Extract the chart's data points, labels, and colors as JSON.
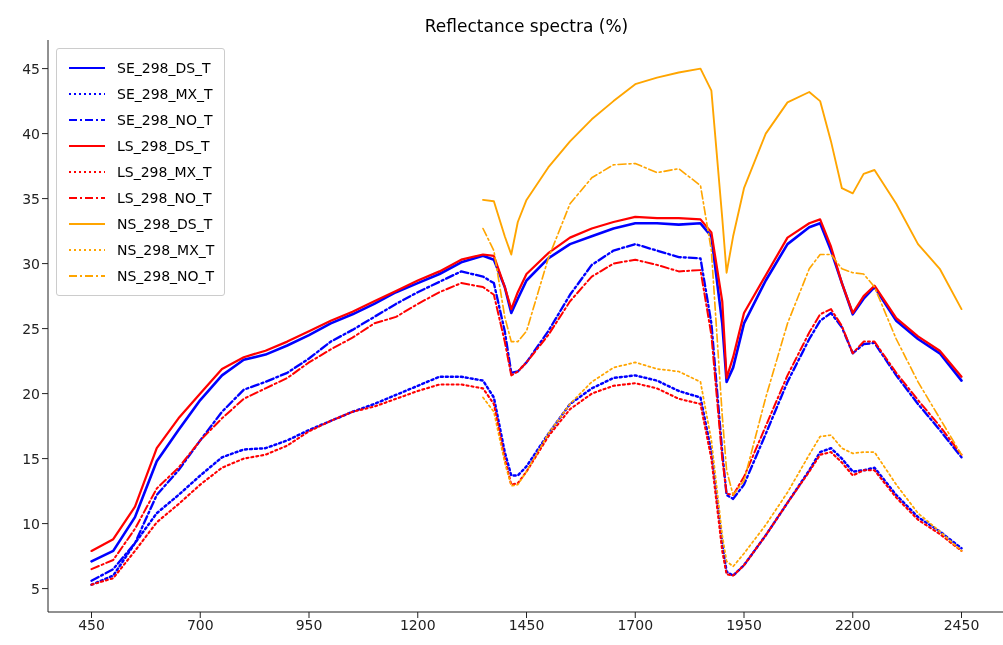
{
  "chart_data": {
    "type": "line",
    "title": "Reflectance spectra (%)",
    "x": [
      450,
      500,
      550,
      600,
      650,
      700,
      750,
      800,
      850,
      900,
      950,
      1000,
      1050,
      1100,
      1150,
      1200,
      1250,
      1300,
      1350,
      1375,
      1400,
      1415,
      1430,
      1450,
      1500,
      1550,
      1600,
      1650,
      1700,
      1750,
      1800,
      1850,
      1875,
      1900,
      1910,
      1925,
      1950,
      2000,
      2050,
      2100,
      2125,
      2150,
      2175,
      2200,
      2225,
      2250,
      2300,
      2350,
      2400,
      2450
    ],
    "xlim": [
      350,
      2550
    ],
    "xticks": [
      450,
      700,
      950,
      1200,
      1450,
      1700,
      1950,
      2200,
      2450
    ],
    "ylim": [
      3.2,
      47.2
    ],
    "yticks": [
      5,
      10,
      15,
      20,
      25,
      30,
      35,
      40,
      45
    ],
    "grid": false,
    "legend": "top left",
    "marker": "none",
    "series": [
      {
        "name": "SE_298_DS_T",
        "color": "#0000ff",
        "line_style": "solid",
        "values": [
          7.1,
          7.9,
          10.5,
          14.8,
          17.2,
          19.5,
          21.4,
          22.6,
          23.0,
          23.7,
          24.5,
          25.4,
          26.1,
          26.9,
          27.8,
          28.5,
          29.2,
          30.1,
          30.6,
          30.3,
          28.2,
          26.2,
          27.3,
          28.7,
          30.4,
          31.5,
          32.1,
          32.7,
          33.1,
          33.1,
          33.0,
          33.1,
          32.1,
          25.4,
          20.9,
          22.0,
          25.4,
          28.7,
          31.5,
          32.8,
          33.1,
          31.0,
          28.5,
          26.1,
          27.3,
          28.2,
          25.6,
          24.2,
          23.1,
          21.0
        ]
      },
      {
        "name": "SE_298_MX_T",
        "color": "#0000ff",
        "line_style": "dotted",
        "values": [
          5.3,
          6.0,
          8.5,
          10.8,
          12.2,
          13.7,
          15.1,
          15.7,
          15.8,
          16.4,
          17.2,
          17.9,
          18.6,
          19.2,
          19.9,
          20.6,
          21.3,
          21.3,
          21.0,
          19.7,
          15.5,
          13.7,
          13.7,
          14.4,
          16.9,
          19.2,
          20.4,
          21.2,
          21.4,
          21.0,
          20.2,
          19.7,
          15.5,
          8.5,
          6.3,
          6.0,
          6.8,
          9.1,
          11.6,
          14.1,
          15.5,
          15.8,
          15.0,
          14.0,
          14.1,
          14.3,
          12.2,
          10.5,
          9.4,
          8.1
        ]
      },
      {
        "name": "SE_298_NO_T",
        "color": "#0000ff",
        "line_style": "dashdot",
        "values": [
          5.6,
          6.5,
          8.5,
          12.2,
          14.1,
          16.4,
          18.6,
          20.3,
          20.9,
          21.6,
          22.7,
          24.0,
          24.9,
          25.9,
          26.9,
          27.8,
          28.6,
          29.4,
          29.0,
          28.5,
          24.8,
          21.6,
          21.7,
          22.4,
          24.8,
          27.6,
          29.9,
          31.0,
          31.5,
          31.0,
          30.5,
          30.4,
          25.4,
          15.5,
          12.2,
          11.9,
          13.0,
          16.9,
          20.9,
          24.2,
          25.6,
          26.2,
          25.1,
          23.1,
          23.8,
          23.9,
          21.4,
          19.2,
          17.2,
          15.1
        ]
      },
      {
        "name": "LS_298_DS_T",
        "color": "#ff0000",
        "line_style": "solid",
        "values": [
          7.9,
          8.8,
          11.3,
          15.8,
          18.1,
          20.0,
          21.9,
          22.8,
          23.3,
          24.0,
          24.8,
          25.6,
          26.3,
          27.1,
          27.9,
          28.7,
          29.4,
          30.3,
          30.7,
          30.6,
          28.2,
          26.5,
          27.8,
          29.2,
          30.8,
          32.0,
          32.7,
          33.2,
          33.6,
          33.5,
          33.5,
          33.4,
          32.4,
          27.1,
          21.2,
          22.8,
          26.2,
          29.1,
          32.0,
          33.1,
          33.4,
          31.3,
          28.5,
          26.2,
          27.5,
          28.3,
          25.8,
          24.4,
          23.3,
          21.3
        ]
      },
      {
        "name": "LS_298_MX_T",
        "color": "#ff0000",
        "line_style": "dotted",
        "values": [
          5.3,
          5.8,
          7.9,
          10.1,
          11.5,
          13.0,
          14.3,
          15.0,
          15.3,
          16.0,
          17.1,
          17.9,
          18.6,
          19.0,
          19.6,
          20.2,
          20.7,
          20.7,
          20.4,
          19.2,
          15.0,
          13.0,
          13.1,
          14.0,
          16.7,
          18.8,
          20.0,
          20.6,
          20.8,
          20.4,
          19.6,
          19.2,
          15.0,
          7.9,
          6.1,
          6.0,
          6.8,
          9.1,
          11.6,
          14.0,
          15.3,
          15.5,
          14.7,
          13.7,
          14.1,
          14.1,
          12.0,
          10.3,
          9.2,
          7.9
        ]
      },
      {
        "name": "LS_298_NO_T",
        "color": "#ff0000",
        "line_style": "dashdot",
        "values": [
          6.5,
          7.2,
          9.6,
          12.7,
          14.3,
          16.4,
          18.1,
          19.6,
          20.4,
          21.2,
          22.4,
          23.4,
          24.3,
          25.4,
          25.9,
          26.9,
          27.8,
          28.5,
          28.2,
          27.6,
          24.0,
          21.4,
          21.7,
          22.4,
          24.5,
          27.1,
          29.0,
          30.0,
          30.3,
          29.9,
          29.4,
          29.5,
          24.5,
          15.0,
          12.3,
          12.2,
          13.6,
          17.5,
          21.4,
          24.7,
          26.1,
          26.5,
          25.2,
          23.1,
          24.0,
          24.0,
          21.6,
          19.5,
          17.5,
          15.3
        ]
      },
      {
        "name": "NS_298_DS_T",
        "color": "#ffa500",
        "line_style": "solid",
        "values": [
          null,
          null,
          null,
          null,
          null,
          null,
          null,
          null,
          null,
          null,
          null,
          null,
          null,
          null,
          null,
          null,
          null,
          null,
          34.9,
          34.8,
          32.1,
          30.7,
          33.2,
          34.9,
          37.4,
          39.4,
          41.1,
          42.5,
          43.8,
          44.3,
          44.7,
          45.0,
          43.3,
          33.5,
          29.3,
          32.1,
          35.8,
          40.0,
          42.4,
          43.2,
          42.5,
          39.4,
          35.8,
          35.4,
          36.9,
          37.2,
          34.6,
          31.5,
          29.6,
          26.5
        ]
      },
      {
        "name": "NS_298_MX_T",
        "color": "#ffa500",
        "line_style": "dotted",
        "values": [
          null,
          null,
          null,
          null,
          null,
          null,
          null,
          null,
          null,
          null,
          null,
          null,
          null,
          null,
          null,
          null,
          null,
          null,
          19.7,
          18.6,
          14.7,
          12.9,
          13.0,
          14.0,
          16.9,
          19.2,
          20.9,
          22.0,
          22.4,
          21.9,
          21.7,
          20.9,
          16.4,
          9.1,
          7.1,
          6.7,
          7.7,
          9.9,
          12.4,
          15.3,
          16.7,
          16.8,
          15.8,
          15.4,
          15.5,
          15.5,
          13.0,
          10.8,
          9.4,
          7.9
        ]
      },
      {
        "name": "NS_298_NO_T",
        "color": "#ffa500",
        "line_style": "dashdot",
        "values": [
          null,
          null,
          null,
          null,
          null,
          null,
          null,
          null,
          null,
          null,
          null,
          null,
          null,
          null,
          null,
          null,
          null,
          null,
          32.7,
          31.0,
          25.9,
          24.0,
          24.0,
          24.8,
          30.4,
          34.6,
          36.6,
          37.6,
          37.7,
          37.0,
          37.3,
          36.0,
          31.0,
          18.3,
          14.1,
          12.2,
          13.3,
          19.7,
          25.4,
          29.6,
          30.7,
          30.7,
          29.6,
          29.3,
          29.2,
          28.2,
          24.2,
          20.9,
          18.1,
          15.3
        ]
      }
    ]
  }
}
